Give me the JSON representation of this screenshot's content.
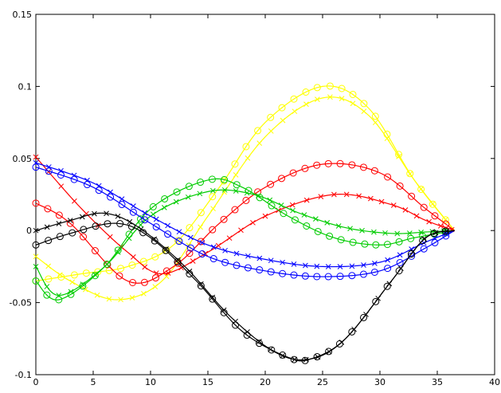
{
  "chart_data": {
    "type": "line",
    "title": "",
    "xlabel": "",
    "ylabel": "",
    "xlim": [
      0,
      40
    ],
    "ylim": [
      -0.1,
      0.15
    ],
    "grid": false,
    "legend": "none",
    "xticks": [
      0,
      5,
      10,
      15,
      20,
      25,
      30,
      35,
      40
    ],
    "yticks": [
      -0.1,
      -0.05,
      0,
      0.05,
      0.1,
      0.15
    ],
    "xtick_labels": [
      "0",
      "5",
      "10",
      "15",
      "20",
      "25",
      "30",
      "35",
      "40"
    ],
    "ytick_labels": [
      "-0.1",
      "-0.05",
      "0",
      "0.05",
      "0.1",
      "0.15"
    ],
    "series": [
      {
        "color": "#ffff00",
        "marker": "o",
        "x": [
          0,
          4,
          8,
          12,
          16,
          20,
          25,
          29,
          33,
          36.5
        ],
        "y": [
          -0.035,
          -0.03,
          -0.025,
          -0.01,
          0.03,
          0.075,
          0.1,
          0.085,
          0.035,
          0
        ]
      },
      {
        "color": "#ffff00",
        "marker": "x",
        "x": [
          0,
          3,
          7,
          11,
          15,
          20,
          25,
          29,
          33,
          36.5
        ],
        "y": [
          -0.018,
          -0.035,
          -0.048,
          -0.035,
          0.01,
          0.065,
          0.092,
          0.08,
          0.035,
          0
        ]
      },
      {
        "color": "#ff0000",
        "marker": "o",
        "x": [
          0,
          3,
          8,
          12,
          16,
          20,
          25,
          30,
          34,
          36.5
        ],
        "y": [
          0.019,
          0.005,
          -0.035,
          -0.025,
          0.005,
          0.03,
          0.046,
          0.04,
          0.015,
          0
        ]
      },
      {
        "color": "#ff0000",
        "marker": "x",
        "x": [
          0,
          4,
          8,
          11,
          15,
          20,
          26,
          31,
          34,
          36.5
        ],
        "y": [
          0.051,
          0.015,
          -0.015,
          -0.03,
          -0.015,
          0.01,
          0.025,
          0.018,
          0.007,
          0
        ]
      },
      {
        "color": "#00cc00",
        "marker": "o",
        "x": [
          0,
          2,
          6,
          10,
          15,
          18,
          22,
          26,
          30,
          33,
          36.5
        ],
        "y": [
          -0.035,
          -0.048,
          -0.025,
          0.015,
          0.035,
          0.03,
          0.01,
          -0.005,
          -0.01,
          -0.005,
          0
        ]
      },
      {
        "color": "#00cc00",
        "marker": "x",
        "x": [
          0,
          2,
          6,
          10,
          15,
          19,
          23,
          27,
          31,
          34,
          36.5
        ],
        "y": [
          -0.025,
          -0.045,
          -0.025,
          0.01,
          0.027,
          0.025,
          0.012,
          0.002,
          -0.002,
          -0.001,
          0
        ]
      },
      {
        "color": "#0000ff",
        "marker": "o",
        "x": [
          0,
          5,
          10,
          15,
          20,
          25,
          30,
          34,
          36.5
        ],
        "y": [
          0.044,
          0.03,
          0.005,
          -0.018,
          -0.028,
          -0.032,
          -0.028,
          -0.012,
          0
        ]
      },
      {
        "color": "#0000ff",
        "marker": "x",
        "x": [
          0,
          5,
          10,
          15,
          20,
          25,
          30,
          34,
          36.5
        ],
        "y": [
          0.047,
          0.033,
          0.01,
          -0.01,
          -0.02,
          -0.025,
          -0.022,
          -0.008,
          0
        ]
      },
      {
        "color": "#000000",
        "marker": "o",
        "x": [
          0,
          3,
          7,
          10,
          14,
          18,
          22,
          24,
          27,
          31,
          34,
          36.5
        ],
        "y": [
          -0.01,
          -0.002,
          0.005,
          -0.005,
          -0.035,
          -0.07,
          -0.088,
          -0.089,
          -0.075,
          -0.035,
          -0.005,
          0
        ]
      },
      {
        "color": "#000000",
        "marker": "x",
        "x": [
          0,
          3,
          6,
          9,
          13,
          17,
          21,
          24,
          27,
          31,
          34,
          36.5
        ],
        "y": [
          0,
          0.007,
          0.012,
          0.002,
          -0.025,
          -0.06,
          -0.085,
          -0.089,
          -0.075,
          -0.035,
          -0.005,
          0
        ]
      }
    ]
  }
}
